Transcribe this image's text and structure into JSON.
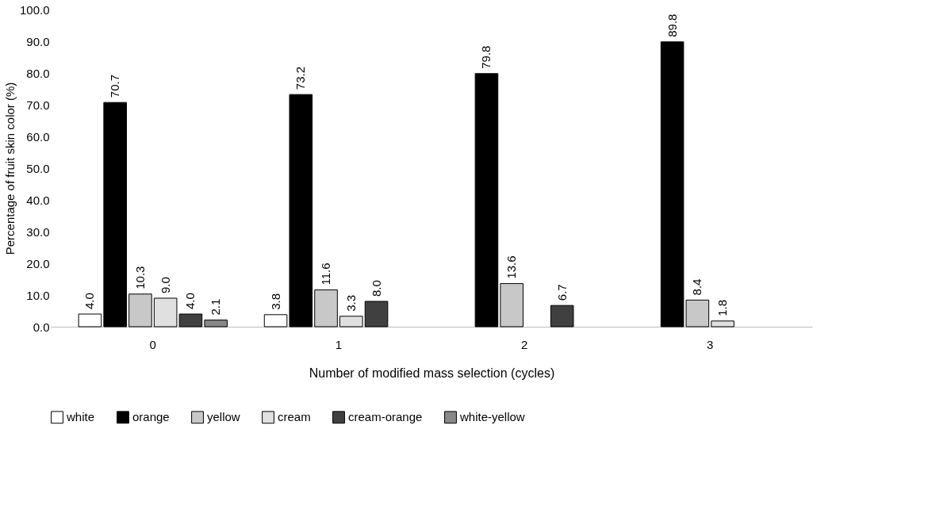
{
  "chart_data": {
    "type": "bar",
    "xlabel": "Number of modified mass selection (cycles)",
    "ylabel": "Percentage of fruit skin color (%)",
    "categories": [
      "0",
      "1",
      "2",
      "3"
    ],
    "series": [
      {
        "name": "white",
        "color": "#ffffff",
        "values": [
          4.0,
          3.8,
          null,
          null
        ],
        "value_labels": [
          "4.0",
          "3.8",
          null,
          null
        ]
      },
      {
        "name": "orange",
        "color": "#000000",
        "values": [
          70.7,
          73.2,
          79.8,
          89.8
        ],
        "value_labels": [
          "70.7",
          "73.2",
          "79.8",
          "89.8"
        ]
      },
      {
        "name": "yellow",
        "color": "#c8c8c8",
        "values": [
          10.3,
          11.6,
          13.6,
          8.4
        ],
        "value_labels": [
          "10.3",
          "11.6",
          "13.6",
          "8.4"
        ]
      },
      {
        "name": "cream",
        "color": "#e0e0e0",
        "values": [
          9.0,
          3.3,
          null,
          1.8
        ],
        "value_labels": [
          "9.0",
          "3.3",
          null,
          "1.8"
        ]
      },
      {
        "name": "cream-orange",
        "color": "#404040",
        "values": [
          4.0,
          8.0,
          6.7,
          null
        ],
        "value_labels": [
          "4.0",
          "8.0",
          "6.7",
          null
        ]
      },
      {
        "name": "white-yellow",
        "color": "#888888",
        "values": [
          2.1,
          null,
          null,
          null
        ],
        "value_labels": [
          "2.1",
          null,
          null,
          null
        ]
      }
    ],
    "ylim": [
      0,
      100
    ],
    "yticks": [
      {
        "value": 0,
        "label": "0.0"
      },
      {
        "value": 10,
        "label": "10.0"
      },
      {
        "value": 20,
        "label": "20.0"
      },
      {
        "value": 30,
        "label": "30.0"
      },
      {
        "value": 40,
        "label": "40.0"
      },
      {
        "value": 50,
        "label": "50.0"
      },
      {
        "value": 60,
        "label": "60.0"
      },
      {
        "value": 70,
        "label": "70.0"
      },
      {
        "value": 80,
        "label": "80.0"
      },
      {
        "value": 90,
        "label": "90.0"
      },
      {
        "value": 100,
        "label": "100.0"
      }
    ],
    "grid": false,
    "legend": "bottom"
  }
}
